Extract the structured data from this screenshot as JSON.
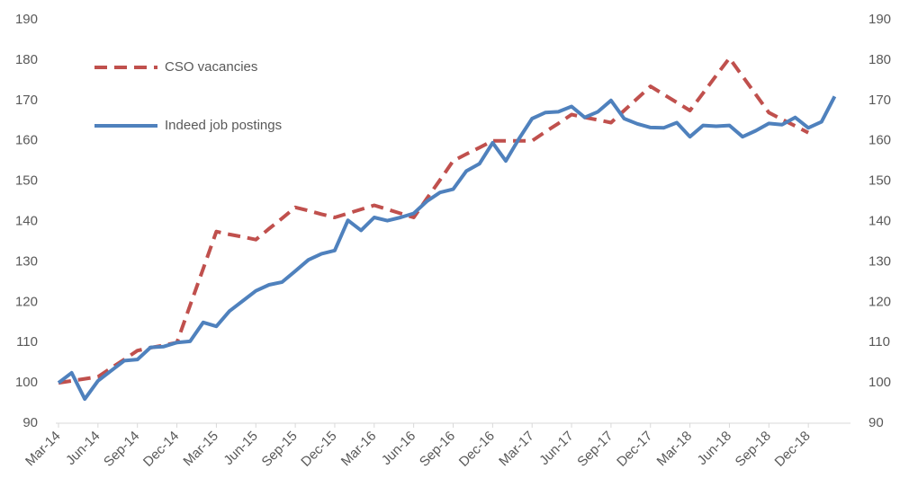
{
  "chart_data": {
    "type": "line",
    "categories": [
      "Mar-14",
      null,
      null,
      "Jun-14",
      null,
      null,
      "Sep-14",
      null,
      null,
      "Dec-14",
      null,
      null,
      "Mar-15",
      null,
      null,
      "Jun-15",
      null,
      null,
      "Sep-15",
      null,
      null,
      "Dec-15",
      null,
      null,
      "Mar-16",
      null,
      null,
      "Jun-16",
      null,
      null,
      "Sep-16",
      null,
      null,
      "Dec-16",
      null,
      null,
      "Mar-17",
      null,
      null,
      "Jun-17",
      null,
      null,
      "Sep-17",
      null,
      null,
      "Dec-17",
      null,
      null,
      "Mar-18",
      null,
      null,
      "Jun-18",
      null,
      null,
      "Sep-18",
      null,
      null,
      "Dec-18",
      null,
      null
    ],
    "series": [
      {
        "name": "CSO vacancies",
        "color": "#c0504d",
        "dashed": true,
        "values": [
          100,
          100.5,
          101,
          101.5,
          103.7,
          105.8,
          108,
          108.7,
          109.3,
          110,
          119.2,
          128.3,
          137.5,
          136.8,
          136.2,
          135.5,
          138.2,
          140.8,
          143.5,
          142.7,
          141.8,
          141,
          142,
          143,
          144,
          143,
          142,
          141,
          145.7,
          150.3,
          155,
          156.7,
          158.3,
          160,
          160,
          160,
          160,
          162.2,
          164.3,
          166.5,
          165.8,
          165.2,
          164.5,
          167.5,
          170.5,
          173.5,
          171.5,
          169.5,
          167.5,
          171.8,
          176.2,
          180.5,
          176,
          171.5,
          167,
          165.3,
          163.7,
          162,
          null,
          null
        ]
      },
      {
        "name": "Indeed job postings",
        "color": "#4f81bd",
        "dashed": false,
        "values": [
          100,
          102.5,
          96,
          100.5,
          103,
          105.5,
          105.8,
          108.8,
          109,
          110,
          110.3,
          115,
          114,
          117.8,
          120.3,
          122.8,
          124.3,
          125,
          127.7,
          130.5,
          132,
          132.8,
          140.3,
          137.8,
          141,
          140.2,
          141,
          142,
          145,
          147.2,
          148,
          152.5,
          154.3,
          159.5,
          155,
          160.5,
          165.5,
          167,
          167.2,
          168.5,
          165.8,
          167.2,
          170,
          165.5,
          164.2,
          163.3,
          163.2,
          164.5,
          161,
          163.8,
          163.6,
          163.8,
          161,
          162.5,
          164.3,
          164,
          165.8,
          163.2,
          164.7,
          171
        ]
      }
    ],
    "ylim": [
      90,
      190
    ],
    "yticks": [
      90,
      100,
      110,
      120,
      130,
      140,
      150,
      160,
      170,
      180,
      190
    ],
    "y2lim": [
      90,
      190
    ],
    "y2ticks": [
      90,
      100,
      110,
      120,
      130,
      140,
      150,
      160,
      170,
      180,
      190
    ],
    "grid": false,
    "legend": "upper left"
  }
}
